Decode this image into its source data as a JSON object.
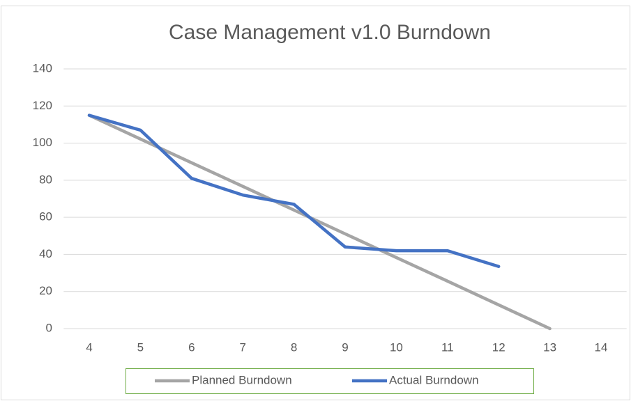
{
  "chart_data": {
    "type": "line",
    "title": "Case Management v1.0 Burndown",
    "categories": [
      "4",
      "5",
      "6",
      "7",
      "8",
      "9",
      "10",
      "11",
      "12",
      "13",
      "14"
    ],
    "series": [
      {
        "name": "Planned Burndown",
        "color": "#a5a5a5",
        "values": [
          115,
          102.2,
          89.4,
          76.7,
          63.9,
          51.1,
          38.3,
          25.6,
          12.8,
          0,
          null
        ]
      },
      {
        "name": "Actual Burndown",
        "color": "#4472c4",
        "values": [
          115,
          107,
          81,
          72,
          67,
          44,
          42,
          42,
          33.5,
          null,
          null
        ]
      }
    ],
    "ylim": [
      0,
      140
    ],
    "yticks": [
      0,
      20,
      40,
      60,
      80,
      100,
      120,
      140
    ],
    "grid": true,
    "legend": "bottom"
  }
}
